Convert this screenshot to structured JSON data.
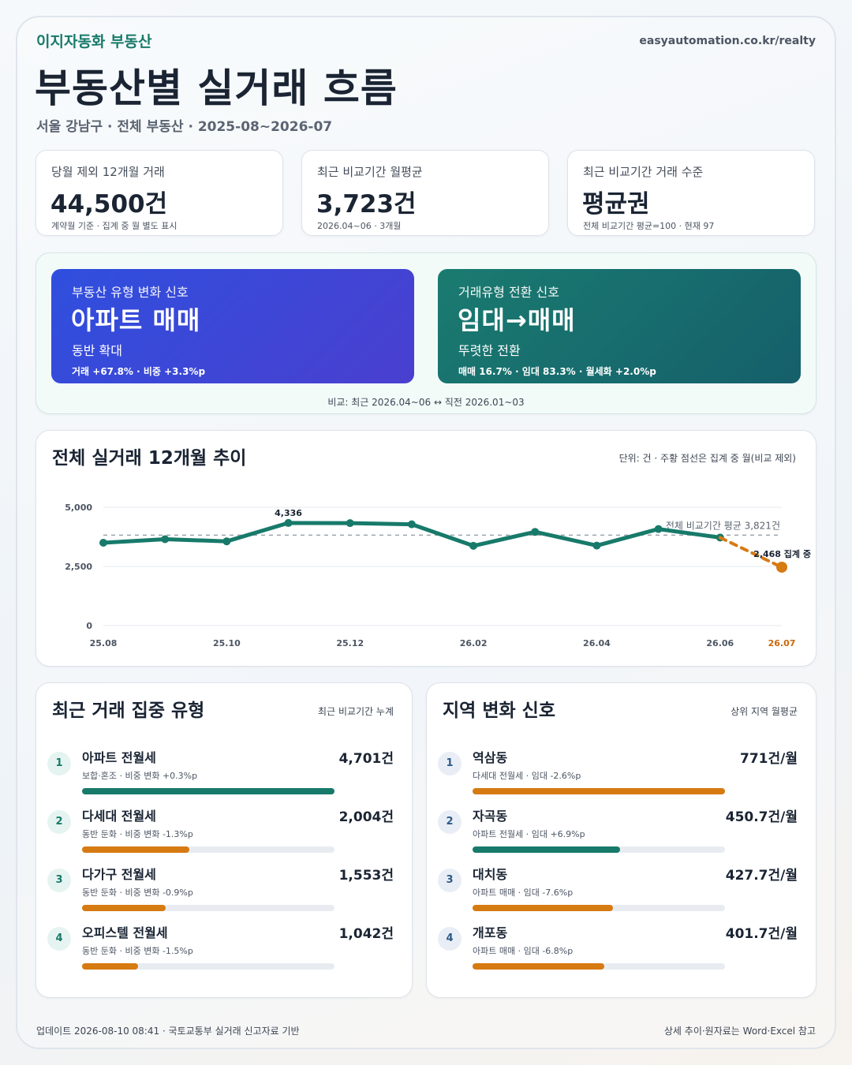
{
  "header": {
    "brand": "이지자동화 부동산",
    "site": "easyautomation.co.kr/realty",
    "title": "부동산별 실거래 흐름",
    "subtitle": "서울 강남구 · 전체 부동산 · 2025-08~2026-07"
  },
  "kpis": [
    {
      "label": "당월 제외 12개월 거래",
      "value": "44,500건",
      "note": "계약월 기준 · 집계 중 월 별도 표시"
    },
    {
      "label": "최근 비교기간 월평균",
      "value": "3,723건",
      "note": "2026.04~06 · 3개월"
    },
    {
      "label": "최근 비교기간 거래 수준",
      "value": "평균권",
      "note": "전체 비교기간 평균=100 · 현재 97"
    }
  ],
  "signals": {
    "type_signal": {
      "label": "부동산 유형 변화 신호",
      "big": "아파트 매매",
      "mid": "동반 확대",
      "small": "거래 +67.8% · 비중 +3.3%p"
    },
    "deal_signal": {
      "label": "거래유형 전환 신호",
      "big": "임대→매매",
      "mid": "뚜렷한 전환",
      "small": "매매 16.7% · 임대 83.3% · 월세화 +2.0%p"
    },
    "comparison": "비교: 최근 2026.04~06 ↔ 직전 2026.01~03"
  },
  "trend": {
    "title": "전체 실거래 12개월 추이",
    "unit_note": "단위: 건 · 주황 점선은 집계 중 월(비교 제외)",
    "ref_label": "전체 비교기간 평균 3,821건",
    "peak_label": "4,336",
    "partial_label": "2,468 집계 중"
  },
  "chart_data": {
    "type": "line",
    "title": "전체 실거래 12개월 추이",
    "x": [
      "25.08",
      "25.09",
      "25.10",
      "25.11",
      "25.12",
      "26.01",
      "26.02",
      "26.03",
      "26.04",
      "26.05",
      "26.06",
      "26.07"
    ],
    "x_tick_labels": [
      "25.08",
      "25.10",
      "25.12",
      "26.02",
      "26.04",
      "26.06",
      "26.07"
    ],
    "y_ticks": [
      "0",
      "2,500",
      "5,000"
    ],
    "ylim": [
      0,
      5000
    ],
    "series": [
      {
        "values": [
          3500,
          3650,
          3560,
          4336,
          4330,
          4280,
          3370,
          3960,
          3380,
          4080,
          3720,
          null
        ],
        "color": "#177a6a"
      },
      {
        "values": [
          null,
          null,
          null,
          null,
          null,
          null,
          null,
          null,
          null,
          null,
          3720,
          2468
        ],
        "color": "#d67a12",
        "dashed": true
      }
    ],
    "reference_line": {
      "value": 3821,
      "label": "전체 비교기간 평균 3,821건"
    },
    "grid": true
  },
  "top_types": {
    "title": "최근 거래 집중 유형",
    "note": "최근 비교기간 누계",
    "items": [
      {
        "rank": "1",
        "name": "아파트 전월세",
        "sub": "보합·혼조 · 비중 변화 +0.3%p",
        "value": "4,701건",
        "bar": 1.0,
        "color": "#177a6a"
      },
      {
        "rank": "2",
        "name": "다세대 전월세",
        "sub": "동반 둔화 · 비중 변화 -1.3%p",
        "value": "2,004건",
        "bar": 0.426,
        "color": "#d67a12"
      },
      {
        "rank": "3",
        "name": "다가구 전월세",
        "sub": "동반 둔화 · 비중 변화 -0.9%p",
        "value": "1,553건",
        "bar": 0.33,
        "color": "#d67a12"
      },
      {
        "rank": "4",
        "name": "오피스텔 전월세",
        "sub": "동반 둔화 · 비중 변화 -1.5%p",
        "value": "1,042건",
        "bar": 0.222,
        "color": "#d67a12"
      }
    ]
  },
  "regions": {
    "title": "지역 변화 신호",
    "note": "상위 지역 월평균",
    "items": [
      {
        "rank": "1",
        "name": "역삼동",
        "sub": "다세대 전월세 · 임대 -2.6%p",
        "value": "771건/월",
        "bar": 1.0,
        "color": "#d67a12"
      },
      {
        "rank": "2",
        "name": "자곡동",
        "sub": "아파트 전월세 · 임대 +6.9%p",
        "value": "450.7건/월",
        "bar": 0.585,
        "color": "#177a6a"
      },
      {
        "rank": "3",
        "name": "대치동",
        "sub": "아파트 매매 · 임대 -7.6%p",
        "value": "427.7건/월",
        "bar": 0.555,
        "color": "#d67a12"
      },
      {
        "rank": "4",
        "name": "개포동",
        "sub": "아파트 매매 · 임대 -6.8%p",
        "value": "401.7건/월",
        "bar": 0.521,
        "color": "#d67a12"
      }
    ]
  },
  "footer": {
    "left": "업데이트 2026-08-10 08:41 · 국토교통부 실거래 신고자료 기반",
    "right": "상세 추이·원자료는 Word·Excel 참고"
  }
}
